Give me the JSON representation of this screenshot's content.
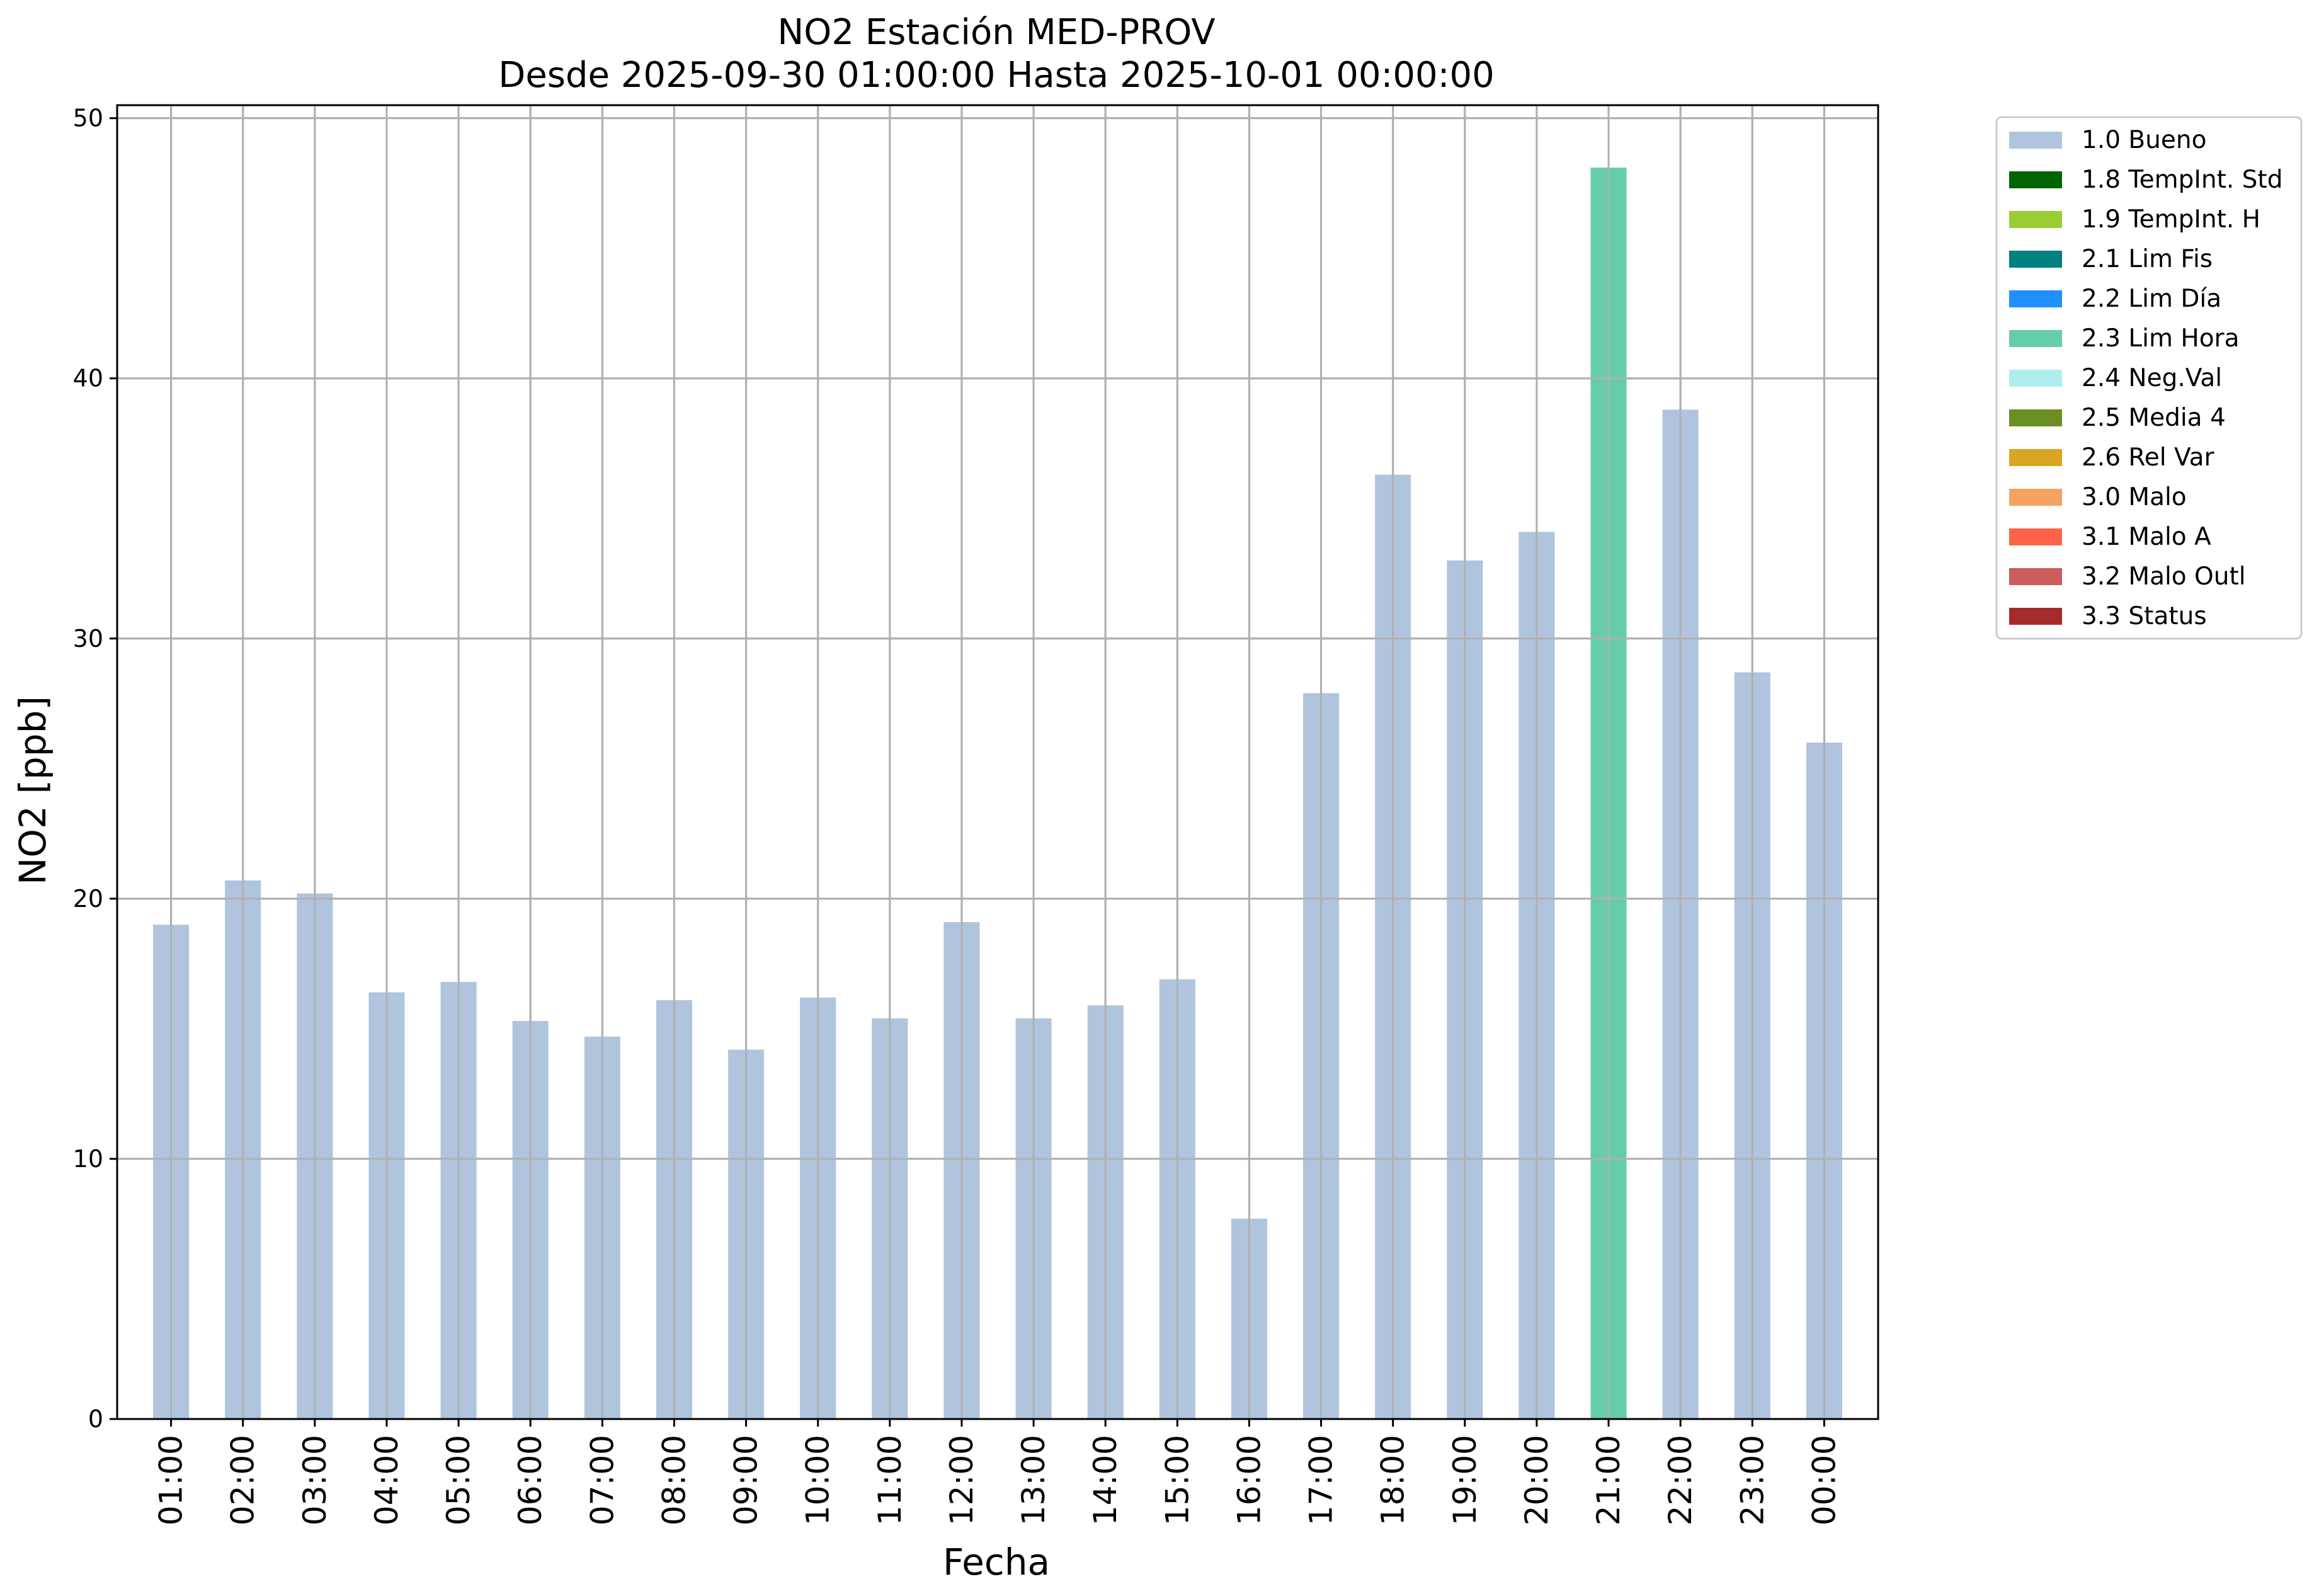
{
  "chart_data": {
    "type": "bar",
    "title": "NO2 Estación MED-PROV",
    "subtitle": "Desde 2025-09-30 01:00:00 Hasta 2025-10-01 00:00:00",
    "xlabel": "Fecha",
    "ylabel": "NO2 [ppb]",
    "ylim": [
      0,
      50.5
    ],
    "yticks": [
      0,
      10,
      20,
      30,
      40,
      50
    ],
    "grid": true,
    "legend_position": "outside-top-right",
    "categories": [
      "01:00",
      "02:00",
      "03:00",
      "04:00",
      "05:00",
      "06:00",
      "07:00",
      "08:00",
      "09:00",
      "10:00",
      "11:00",
      "12:00",
      "13:00",
      "14:00",
      "15:00",
      "16:00",
      "17:00",
      "18:00",
      "19:00",
      "20:00",
      "21:00",
      "22:00",
      "23:00",
      "00:00"
    ],
    "values": [
      19.0,
      20.7,
      20.2,
      16.4,
      16.8,
      15.3,
      14.7,
      16.1,
      14.2,
      16.2,
      15.4,
      19.1,
      15.4,
      15.9,
      16.9,
      7.7,
      27.9,
      36.3,
      33.0,
      34.1,
      48.1,
      38.8,
      28.7,
      26.0
    ],
    "flags": [
      "1.0 Bueno",
      "1.0 Bueno",
      "1.0 Bueno",
      "1.0 Bueno",
      "1.0 Bueno",
      "1.0 Bueno",
      "1.0 Bueno",
      "1.0 Bueno",
      "1.0 Bueno",
      "1.0 Bueno",
      "1.0 Bueno",
      "1.0 Bueno",
      "1.0 Bueno",
      "1.0 Bueno",
      "1.0 Bueno",
      "1.0 Bueno",
      "1.0 Bueno",
      "1.0 Bueno",
      "1.0 Bueno",
      "1.0 Bueno",
      "2.3 Lim Hora",
      "1.0 Bueno",
      "1.0 Bueno",
      "1.0 Bueno"
    ],
    "legend": [
      {
        "label": "1.0 Bueno",
        "color": "#b0c4de"
      },
      {
        "label": "1.8 TempInt. Std",
        "color": "#006400"
      },
      {
        "label": "1.9 TempInt. H",
        "color": "#9acd32"
      },
      {
        "label": "2.1 Lim Fis",
        "color": "#008080"
      },
      {
        "label": "2.2 Lim Día",
        "color": "#1e90ff"
      },
      {
        "label": "2.3 Lim Hora",
        "color": "#66cdaa"
      },
      {
        "label": "2.4 Neg.Val",
        "color": "#afeeee"
      },
      {
        "label": "2.5 Media 4",
        "color": "#6b8e23"
      },
      {
        "label": "2.6 Rel Var",
        "color": "#daa520"
      },
      {
        "label": "3.0 Malo",
        "color": "#f4a460"
      },
      {
        "label": "3.1 Malo A",
        "color": "#ff6347"
      },
      {
        "label": "3.2 Malo Outl",
        "color": "#cd5c5c"
      },
      {
        "label": "3.3 Status",
        "color": "#a52a2a"
      }
    ]
  }
}
